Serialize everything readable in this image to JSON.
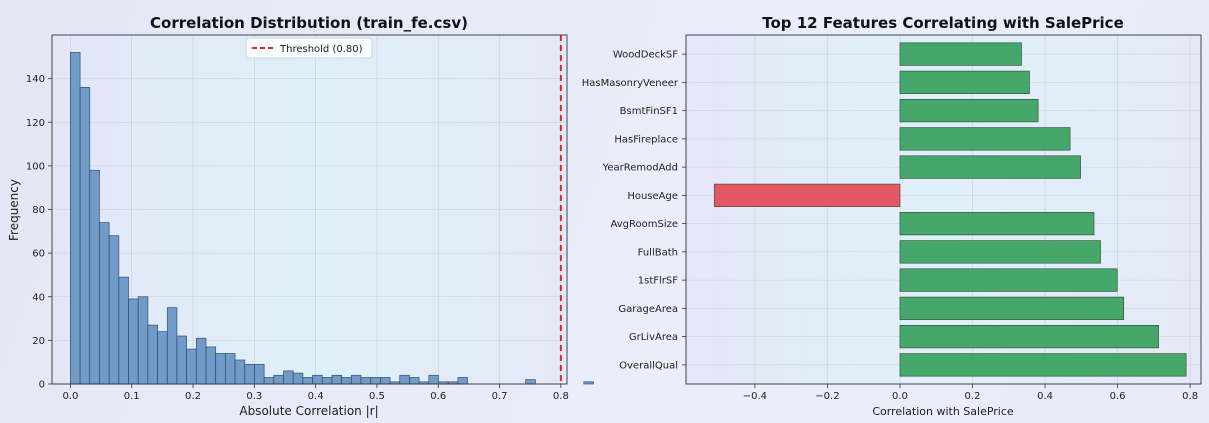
{
  "chart_data": [
    {
      "type": "bar",
      "title": "Correlation Distribution (train_fe.csv)",
      "xlabel": "Absolute Correlation |r|",
      "ylabel": "Frequency",
      "xlim": [
        -0.03,
        0.81
      ],
      "ylim": [
        0,
        160
      ],
      "xticks": [
        "0.0",
        "0.1",
        "0.2",
        "0.3",
        "0.4",
        "0.5",
        "0.6",
        "0.7",
        "0.8"
      ],
      "yticks": [
        "0",
        "20",
        "40",
        "60",
        "80",
        "100",
        "120",
        "140"
      ],
      "bin_start": 0.0,
      "bin_width": 0.0158,
      "values": [
        152,
        136,
        98,
        74,
        68,
        49,
        39,
        40,
        27,
        24,
        35,
        22,
        16,
        21,
        17,
        14,
        14,
        11,
        9,
        9,
        3,
        4,
        6,
        5,
        3,
        4,
        3,
        4,
        3,
        4,
        3,
        3,
        3,
        1,
        4,
        3,
        1,
        4,
        1,
        1,
        3,
        0,
        0,
        0,
        0,
        0,
        0,
        2,
        0,
        0,
        0,
        0,
        0,
        1
      ],
      "bar_color": "#6b97c6",
      "threshold": {
        "value": 0.8,
        "label": "Threshold (0.80)",
        "color": "#e3262c"
      },
      "legend": "top-center"
    },
    {
      "type": "barh",
      "title": "Top 12 Features Correlating with SalePrice",
      "xlabel": "Correlation with SalePrice",
      "xlim": [
        -0.59,
        0.83
      ],
      "xticks": [
        -0.4,
        -0.2,
        0.0,
        0.2,
        0.4,
        0.6,
        0.8
      ],
      "xtick_labels": [
        "−0.4",
        "−0.2",
        "0.0",
        "0.2",
        "0.4",
        "0.6",
        "0.8"
      ],
      "categories": [
        "WoodDeckSF",
        "HasMasonryVeneer",
        "BsmtFinSF1",
        "HasFireplace",
        "YearRemodAdd",
        "HouseAge",
        "AvgRoomSize",
        "FullBath",
        "1stFlrSF",
        "GarageArea",
        "GrLivArea",
        "OverallQual"
      ],
      "values": [
        0.335,
        0.357,
        0.381,
        0.469,
        0.498,
        -0.512,
        0.535,
        0.553,
        0.599,
        0.617,
        0.713,
        0.789
      ],
      "positive_color": "#3da462",
      "negative_color": "#e5515f"
    }
  ]
}
